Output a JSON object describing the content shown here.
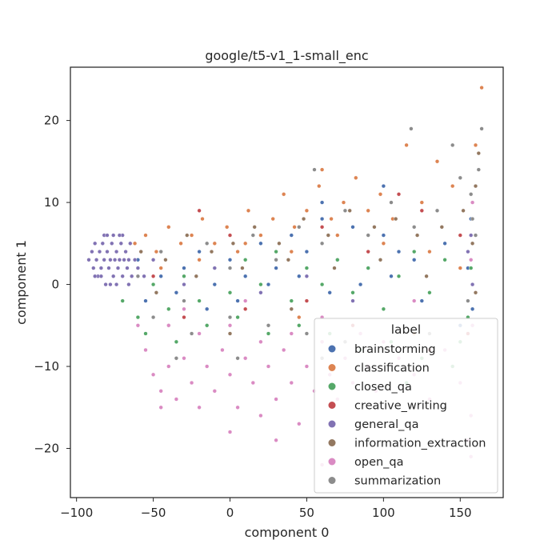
{
  "chart_data": {
    "type": "scatter",
    "title": "google/t5-v1_1-small_enc",
    "xlabel": "component 0",
    "ylabel": "component 1",
    "xlim": [
      -104,
      178
    ],
    "ylim": [
      -26,
      26.5
    ],
    "xticks": [
      -100,
      -50,
      0,
      50,
      100,
      150
    ],
    "xtick_labels": [
      "−100",
      "−50",
      "0",
      "50",
      "100",
      "150"
    ],
    "yticks": [
      -20,
      -10,
      0,
      10,
      20
    ],
    "ytick_labels": [
      "−20",
      "−10",
      "0",
      "10",
      "20"
    ],
    "grid": false,
    "legend": {
      "title": "label",
      "position": "lower-right"
    },
    "series": [
      {
        "name": "brainstorming",
        "color": "#4c72b0",
        "points": [
          [
            -60,
            3
          ],
          [
            -45,
            1
          ],
          [
            -30,
            2
          ],
          [
            -20,
            4
          ],
          [
            -10,
            0
          ],
          [
            0,
            3
          ],
          [
            10,
            1
          ],
          [
            20,
            5
          ],
          [
            30,
            2
          ],
          [
            40,
            6
          ],
          [
            50,
            4
          ],
          [
            60,
            8
          ],
          [
            70,
            3
          ],
          [
            80,
            7
          ],
          [
            90,
            2
          ],
          [
            100,
            6
          ],
          [
            110,
            4
          ],
          [
            120,
            3
          ],
          [
            140,
            5
          ],
          [
            155,
            2
          ],
          [
            -55,
            -2
          ],
          [
            -35,
            -1
          ],
          [
            -15,
            -3
          ],
          [
            5,
            -2
          ],
          [
            25,
            0
          ],
          [
            45,
            1
          ],
          [
            65,
            -1
          ],
          [
            85,
            0
          ],
          [
            105,
            1
          ],
          [
            125,
            -2
          ],
          [
            60,
            10
          ],
          [
            100,
            12
          ],
          [
            150,
            -5
          ],
          [
            157,
            8
          ],
          [
            158,
            -3
          ]
        ]
      },
      {
        "name": "classification",
        "color": "#dd8452",
        "points": [
          [
            -62,
            5
          ],
          [
            -55,
            6
          ],
          [
            -48,
            4
          ],
          [
            -40,
            7
          ],
          [
            -32,
            5
          ],
          [
            -25,
            6
          ],
          [
            -18,
            8
          ],
          [
            -10,
            5
          ],
          [
            -2,
            7
          ],
          [
            5,
            4
          ],
          [
            12,
            9
          ],
          [
            20,
            6
          ],
          [
            28,
            8
          ],
          [
            35,
            11
          ],
          [
            42,
            7
          ],
          [
            50,
            9
          ],
          [
            58,
            12
          ],
          [
            66,
            8
          ],
          [
            74,
            10
          ],
          [
            82,
            13
          ],
          [
            90,
            9
          ],
          [
            98,
            11
          ],
          [
            106,
            8
          ],
          [
            115,
            17
          ],
          [
            125,
            10
          ],
          [
            135,
            15
          ],
          [
            145,
            12
          ],
          [
            160,
            17
          ],
          [
            164,
            24
          ],
          [
            -45,
            2
          ],
          [
            -20,
            3
          ],
          [
            10,
            5
          ],
          [
            40,
            4
          ],
          [
            70,
            6
          ],
          [
            100,
            5
          ],
          [
            130,
            4
          ],
          [
            45,
            -4
          ],
          [
            120,
            -6
          ],
          [
            150,
            2
          ],
          [
            60,
            14
          ]
        ]
      },
      {
        "name": "closed_qa",
        "color": "#55a868",
        "points": [
          [
            -70,
            -2
          ],
          [
            -60,
            -4
          ],
          [
            -50,
            0
          ],
          [
            -40,
            -3
          ],
          [
            -30,
            1
          ],
          [
            -20,
            -2
          ],
          [
            -10,
            2
          ],
          [
            0,
            -1
          ],
          [
            10,
            3
          ],
          [
            20,
            0
          ],
          [
            30,
            4
          ],
          [
            40,
            -2
          ],
          [
            50,
            2
          ],
          [
            60,
            0
          ],
          [
            70,
            3
          ],
          [
            80,
            -1
          ],
          [
            90,
            2
          ],
          [
            100,
            -3
          ],
          [
            110,
            1
          ],
          [
            120,
            4
          ],
          [
            130,
            -1
          ],
          [
            140,
            3
          ],
          [
            150,
            -7
          ],
          [
            155,
            -4
          ],
          [
            157,
            2
          ],
          [
            -55,
            -6
          ],
          [
            -35,
            -7
          ],
          [
            -15,
            -5
          ],
          [
            5,
            -4
          ],
          [
            25,
            -6
          ],
          [
            45,
            -5
          ],
          [
            65,
            -6
          ],
          [
            85,
            -8
          ],
          [
            105,
            -7
          ],
          [
            125,
            -9
          ],
          [
            145,
            -10
          ],
          [
            115,
            -12
          ]
        ]
      },
      {
        "name": "creative_writing",
        "color": "#c44e52",
        "points": [
          [
            -50,
            1
          ],
          [
            -20,
            9
          ],
          [
            0,
            6
          ],
          [
            30,
            3
          ],
          [
            60,
            7
          ],
          [
            90,
            4
          ],
          [
            110,
            11
          ],
          [
            125,
            9
          ],
          [
            150,
            6
          ],
          [
            -30,
            -4
          ],
          [
            10,
            -3
          ],
          [
            50,
            -2
          ],
          [
            80,
            -5
          ],
          [
            130,
            -8
          ],
          [
            155,
            -6
          ]
        ]
      },
      {
        "name": "general_qa",
        "color": "#8172b3",
        "points": [
          [
            -92,
            3
          ],
          [
            -90,
            4
          ],
          [
            -89,
            2
          ],
          [
            -88,
            5
          ],
          [
            -87,
            3
          ],
          [
            -86,
            1
          ],
          [
            -85,
            4
          ],
          [
            -84,
            2
          ],
          [
            -83,
            5
          ],
          [
            -82,
            3
          ],
          [
            -81,
            0
          ],
          [
            -80,
            4
          ],
          [
            -79,
            2
          ],
          [
            -78,
            3
          ],
          [
            -77,
            5
          ],
          [
            -76,
            1
          ],
          [
            -75,
            3
          ],
          [
            -74,
            4
          ],
          [
            -73,
            2
          ],
          [
            -72,
            3
          ],
          [
            -71,
            5
          ],
          [
            -70,
            1
          ],
          [
            -69,
            3
          ],
          [
            -68,
            4
          ],
          [
            -67,
            2
          ],
          [
            -66,
            3
          ],
          [
            -65,
            5
          ],
          [
            -64,
            1
          ],
          [
            -62,
            3
          ],
          [
            -60,
            2
          ],
          [
            -58,
            4
          ],
          [
            -56,
            1
          ],
          [
            -84,
            1
          ],
          [
            -82,
            6
          ],
          [
            -78,
            0
          ],
          [
            -76,
            6
          ],
          [
            -74,
            0
          ],
          [
            -70,
            6
          ],
          [
            -66,
            0
          ],
          [
            -88,
            1
          ],
          [
            -80,
            6
          ],
          [
            -72,
            6
          ],
          [
            -50,
            3
          ],
          [
            -30,
            0
          ],
          [
            -10,
            2
          ],
          [
            20,
            -1
          ],
          [
            50,
            1
          ],
          [
            80,
            -2
          ],
          [
            155,
            4
          ],
          [
            157,
            6
          ],
          [
            158,
            0
          ]
        ]
      },
      {
        "name": "information_extraction",
        "color": "#937860",
        "points": [
          [
            -58,
            4
          ],
          [
            -42,
            3
          ],
          [
            -28,
            6
          ],
          [
            -12,
            4
          ],
          [
            2,
            5
          ],
          [
            16,
            7
          ],
          [
            32,
            5
          ],
          [
            48,
            8
          ],
          [
            64,
            6
          ],
          [
            78,
            9
          ],
          [
            94,
            7
          ],
          [
            108,
            8
          ],
          [
            122,
            6
          ],
          [
            138,
            7
          ],
          [
            152,
            9
          ],
          [
            158,
            5
          ],
          [
            160,
            12
          ],
          [
            162,
            16
          ],
          [
            -48,
            -1
          ],
          [
            -22,
            1
          ],
          [
            8,
            2
          ],
          [
            38,
            3
          ],
          [
            68,
            2
          ],
          [
            98,
            3
          ],
          [
            128,
            1
          ],
          [
            -40,
            -5
          ],
          [
            0,
            -6
          ],
          [
            40,
            -3
          ],
          [
            160,
            -1
          ]
        ]
      },
      {
        "name": "open_qa",
        "color": "#da8bc3",
        "points": [
          [
            -55,
            -8
          ],
          [
            -50,
            -11
          ],
          [
            -45,
            -13
          ],
          [
            -40,
            -10
          ],
          [
            -35,
            -14
          ],
          [
            -30,
            -9
          ],
          [
            -25,
            -12
          ],
          [
            -20,
            -15
          ],
          [
            -15,
            -10
          ],
          [
            -10,
            -13
          ],
          [
            -5,
            -8
          ],
          [
            0,
            -11
          ],
          [
            5,
            -15
          ],
          [
            10,
            -9
          ],
          [
            15,
            -12
          ],
          [
            20,
            -16
          ],
          [
            25,
            -10
          ],
          [
            30,
            -14
          ],
          [
            35,
            -8
          ],
          [
            40,
            -12
          ],
          [
            45,
            -17
          ],
          [
            50,
            -10
          ],
          [
            55,
            -13
          ],
          [
            60,
            -7
          ],
          [
            65,
            -11
          ],
          [
            70,
            -14
          ],
          [
            75,
            -9
          ],
          [
            80,
            -12
          ],
          [
            85,
            -6
          ],
          [
            90,
            -10
          ],
          [
            95,
            -13
          ],
          [
            100,
            -7
          ],
          [
            110,
            -9
          ],
          [
            120,
            -11
          ],
          [
            130,
            -14
          ],
          [
            140,
            -8
          ],
          [
            150,
            -12
          ],
          [
            155,
            -19
          ],
          [
            157,
            -16
          ],
          [
            158,
            -5
          ],
          [
            -40,
            -5
          ],
          [
            -20,
            -6
          ],
          [
            0,
            -5
          ],
          [
            20,
            -7
          ],
          [
            40,
            -6
          ],
          [
            60,
            -4
          ],
          [
            0,
            -18
          ],
          [
            -45,
            -15
          ],
          [
            30,
            -19
          ],
          [
            60,
            -22
          ],
          [
            157,
            -21
          ],
          [
            -60,
            -5
          ],
          [
            -30,
            -3
          ],
          [
            10,
            -2
          ],
          [
            120,
            -2
          ],
          [
            157,
            3
          ],
          [
            158,
            10
          ]
        ]
      },
      {
        "name": "summarization",
        "color": "#8c8c8c",
        "points": [
          [
            -60,
            1
          ],
          [
            -45,
            4
          ],
          [
            -30,
            -2
          ],
          [
            -15,
            5
          ],
          [
            0,
            2
          ],
          [
            15,
            6
          ],
          [
            30,
            3
          ],
          [
            45,
            7
          ],
          [
            60,
            5
          ],
          [
            75,
            9
          ],
          [
            90,
            6
          ],
          [
            105,
            10
          ],
          [
            120,
            7
          ],
          [
            135,
            9
          ],
          [
            145,
            17
          ],
          [
            150,
            13
          ],
          [
            157,
            11
          ],
          [
            158,
            8
          ],
          [
            160,
            6
          ],
          [
            162,
            14
          ],
          [
            164,
            19
          ],
          [
            118,
            19
          ],
          [
            55,
            14
          ],
          [
            -50,
            -4
          ],
          [
            -25,
            -6
          ],
          [
            0,
            -4
          ],
          [
            25,
            -5
          ],
          [
            50,
            -6
          ],
          [
            75,
            -7
          ],
          [
            100,
            -8
          ],
          [
            130,
            -6
          ],
          [
            155,
            -2
          ],
          [
            -35,
            -9
          ],
          [
            5,
            -9
          ],
          [
            60,
            -9
          ],
          [
            140,
            -15
          ]
        ]
      }
    ]
  }
}
